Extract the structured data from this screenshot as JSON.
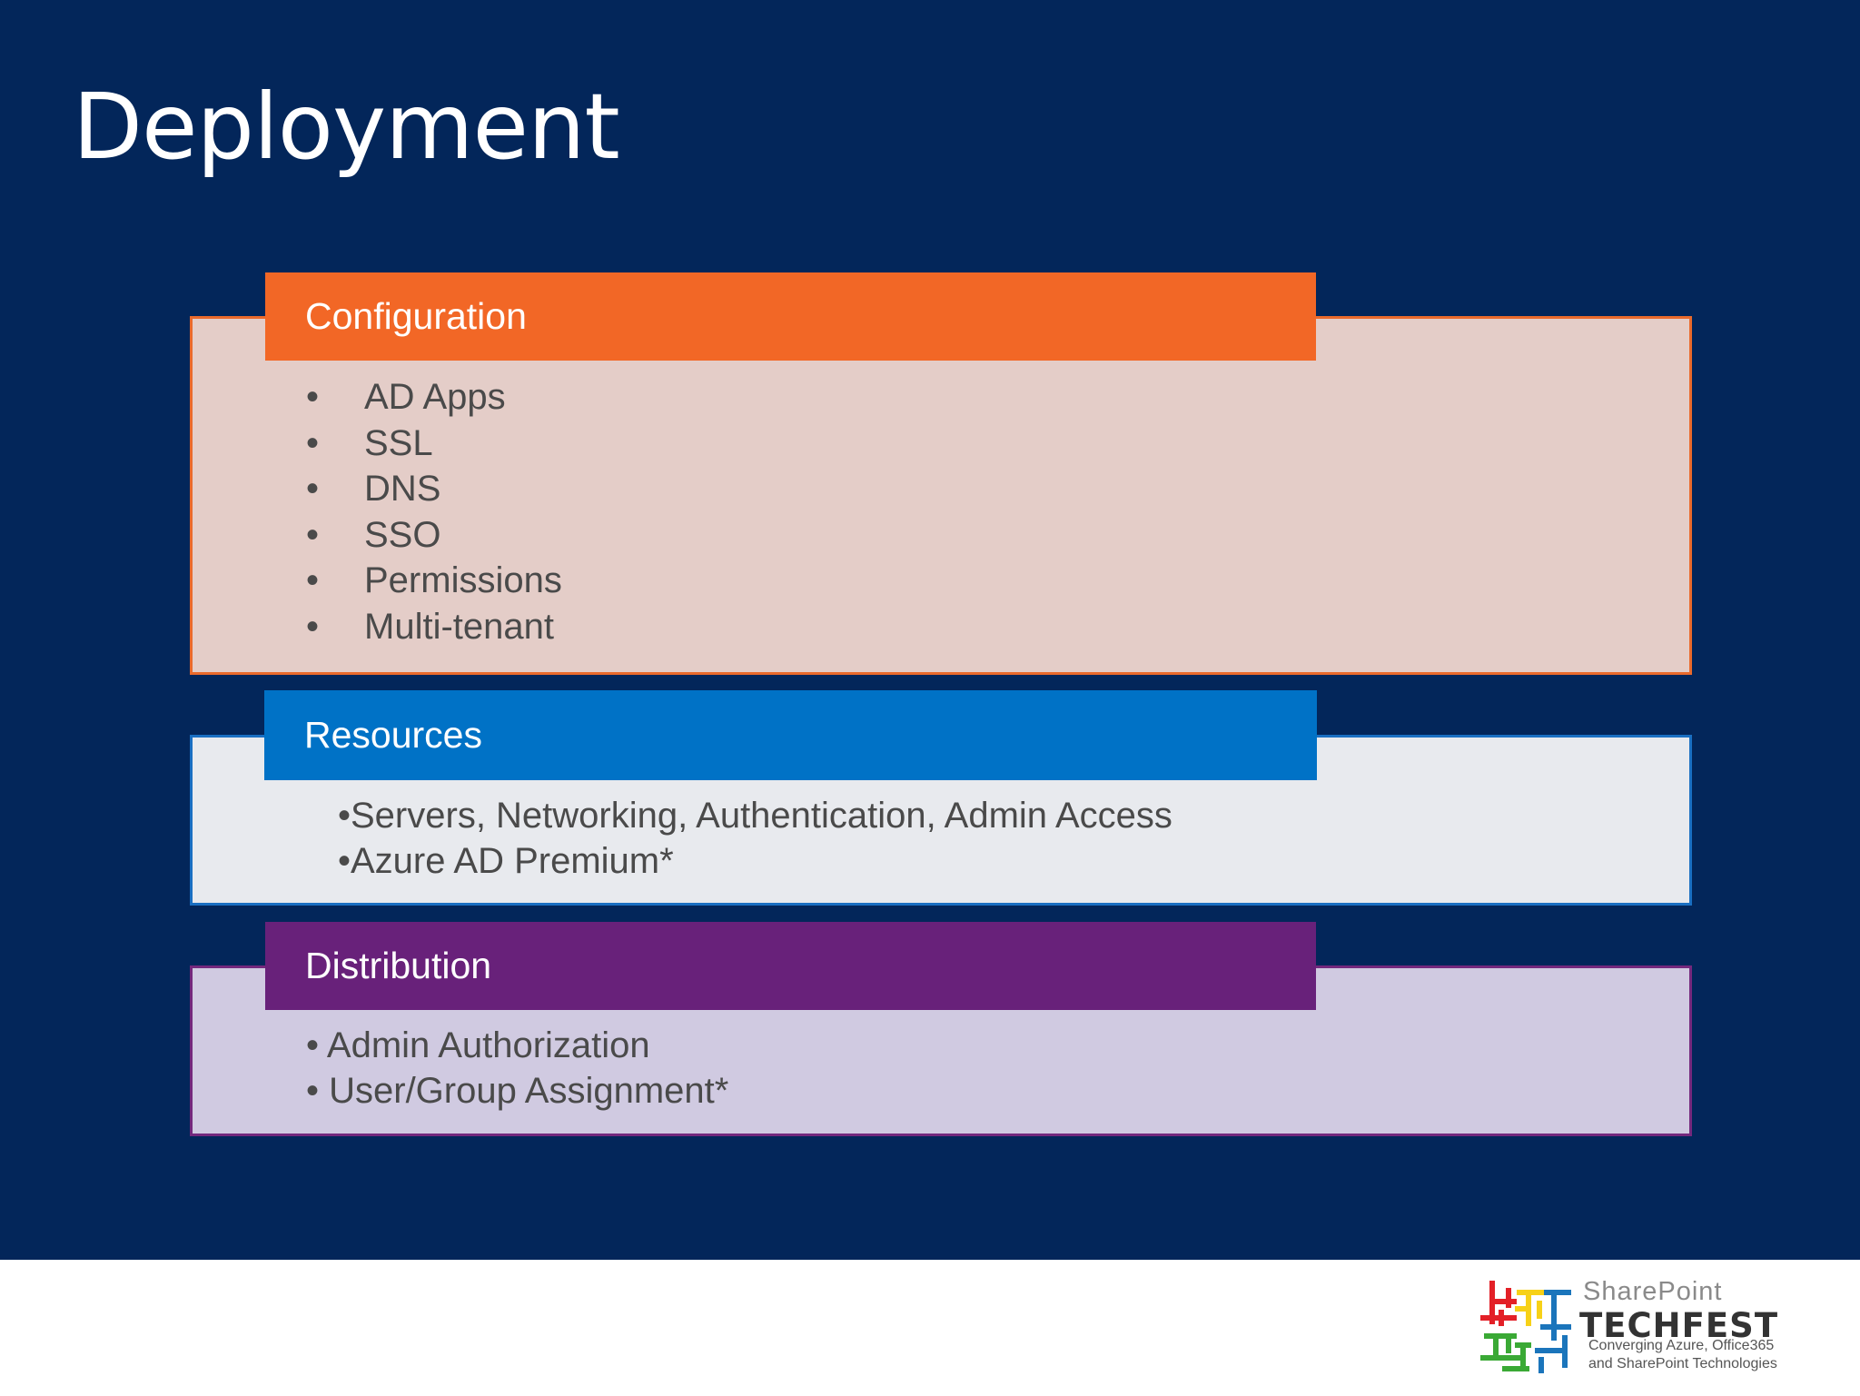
{
  "slide": {
    "title": "Deployment"
  },
  "sections": [
    {
      "header": "Configuration",
      "items": [
        "AD Apps",
        "SSL",
        "DNS",
        "SSO",
        "Permissions",
        "Multi-tenant"
      ],
      "bullet": "•"
    },
    {
      "header": "Resources",
      "items": [
        "•Servers, Networking, Authentication, Admin Access",
        "•Azure AD Premium*"
      ]
    },
    {
      "header": "Distribution",
      "items": [
        "• Admin Authorization",
        "• User/Group Assignment*"
      ]
    }
  ],
  "logo": {
    "brand": "SharePoint",
    "title": "TECHFEST",
    "subtitle_line1": "Converging Azure, Office365",
    "subtitle_line2": "and SharePoint Technologies"
  },
  "colors": {
    "background": "#03265a",
    "configuration": "#f26726",
    "resources": "#0072c6",
    "distribution": "#68217a"
  }
}
